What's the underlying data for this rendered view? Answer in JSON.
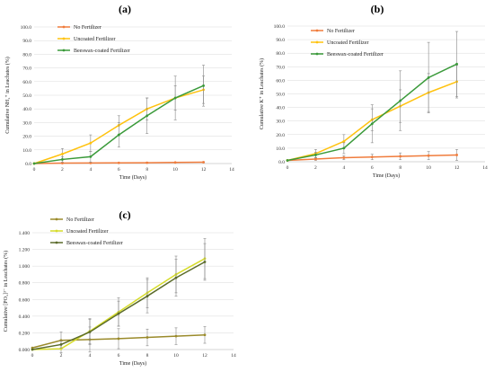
{
  "chart_data": [
    {
      "type": "line",
      "panel": "(a)",
      "xlabel": "Time (Days)",
      "ylabel": "Cumulative NH₄⁺ in Leachates (%)",
      "xlim": [
        0,
        14
      ],
      "xticks": [
        "0",
        "2",
        "4",
        "6",
        "8",
        "10",
        "12",
        "14"
      ],
      "ylim": [
        0,
        100
      ],
      "yticks": [
        "0.0",
        "10.0",
        "20.0",
        "30.0",
        "40.0",
        "50.0",
        "60.0",
        "70.0",
        "80.0",
        "90.0",
        "100.0"
      ],
      "grid": "horizontal",
      "legend": "top-left",
      "series": [
        {
          "name": "No Fertilizer",
          "color": "#f07c3c",
          "x": [
            0,
            2,
            4,
            6,
            8,
            10,
            12
          ],
          "y": [
            0,
            0.3,
            0.4,
            0.5,
            0.6,
            0.8,
            1.0
          ],
          "err": [
            0,
            0.2,
            0.2,
            0.2,
            0.3,
            0.3,
            0.3
          ]
        },
        {
          "name": "Uncoated Fertilizer",
          "color": "#ffc20e",
          "x": [
            0,
            2,
            4,
            6,
            8,
            10,
            12
          ],
          "y": [
            0,
            7,
            15,
            28,
            40,
            48,
            54
          ],
          "err": [
            0,
            4,
            6,
            7,
            8,
            9,
            10
          ]
        },
        {
          "name": "Beeswax-coated Fertilizer",
          "color": "#3a9a3a",
          "x": [
            0,
            2,
            4,
            6,
            8,
            10,
            12
          ],
          "y": [
            0,
            3,
            5,
            21,
            35,
            48,
            57
          ],
          "err": [
            0,
            2,
            4,
            9,
            13,
            16,
            15
          ]
        }
      ]
    },
    {
      "type": "line",
      "panel": "(b)",
      "xlabel": "Time (Days)",
      "ylabel": "Cumulative K⁺ in Leachates (%)",
      "xlim": [
        0,
        14
      ],
      "xticks": [
        "0",
        "2",
        "4",
        "6",
        "8",
        "10",
        "12",
        "14"
      ],
      "ylim": [
        0,
        100
      ],
      "yticks": [
        "0.0",
        "10.0",
        "20.0",
        "30.0",
        "40.0",
        "50.0",
        "60.0",
        "70.0",
        "80.0",
        "90.0",
        "100.0"
      ],
      "grid": "horizontal",
      "legend": "top-left",
      "series": [
        {
          "name": "No Fertilizer",
          "color": "#f07c3c",
          "x": [
            0,
            2,
            4,
            6,
            8,
            10,
            12
          ],
          "y": [
            1,
            2,
            3,
            3.5,
            4,
            4.5,
            5
          ],
          "err": [
            0,
            1,
            1.5,
            2,
            2.5,
            3,
            4
          ]
        },
        {
          "name": "Uncoated Fertilizer",
          "color": "#ffc20e",
          "x": [
            0,
            2,
            4,
            6,
            8,
            10,
            12
          ],
          "y": [
            1,
            6,
            15,
            31,
            41,
            51,
            59
          ],
          "err": [
            0,
            3,
            5,
            8,
            12,
            14,
            12
          ]
        },
        {
          "name": "Beeswax-coated Fertilizer",
          "color": "#3a9a3a",
          "x": [
            0,
            2,
            4,
            6,
            8,
            10,
            12
          ],
          "y": [
            1,
            5,
            10,
            28,
            45,
            62,
            72
          ],
          "err": [
            0,
            2,
            4,
            14,
            22,
            26,
            24
          ]
        }
      ]
    },
    {
      "type": "line",
      "panel": "(c)",
      "xlabel": "Time (Days)",
      "ylabel": "Cumulative [PO₄]³⁻ in Leachates (%)",
      "xlim": [
        0,
        14
      ],
      "xticks": [
        "0",
        "2",
        "4",
        "6",
        "8",
        "10",
        "12",
        "14"
      ],
      "ylim": [
        0,
        1.4
      ],
      "yticks": [
        "0.000",
        "0.200",
        "0.400",
        "0.600",
        "0.800",
        "1.000",
        "1.200",
        "1.400"
      ],
      "grid": "horizontal",
      "legend": "top-left",
      "series": [
        {
          "name": "No Fertilizer",
          "color": "#9a8a2a",
          "x": [
            0,
            2,
            4,
            6,
            8,
            10,
            12
          ],
          "y": [
            0.02,
            0.11,
            0.12,
            0.13,
            0.145,
            0.16,
            0.175
          ],
          "err": [
            0,
            0.1,
            0.15,
            0.12,
            0.1,
            0.1,
            0.1
          ]
        },
        {
          "name": "Uncoated Fertilizer",
          "color": "#d6dc2a",
          "x": [
            0,
            2,
            4,
            6,
            8,
            10,
            12
          ],
          "y": [
            0,
            0.01,
            0.22,
            0.45,
            0.68,
            0.9,
            1.09
          ],
          "err": [
            0,
            0.05,
            0.15,
            0.17,
            0.18,
            0.22,
            0.24
          ]
        },
        {
          "name": "Beeswax-coated Fertilizer",
          "color": "#5b6b2a",
          "x": [
            0,
            2,
            4,
            6,
            8,
            10,
            12
          ],
          "y": [
            0,
            0.06,
            0.21,
            0.43,
            0.64,
            0.86,
            1.05
          ],
          "err": [
            0,
            0.04,
            0.15,
            0.15,
            0.2,
            0.22,
            0.22
          ]
        }
      ]
    }
  ]
}
